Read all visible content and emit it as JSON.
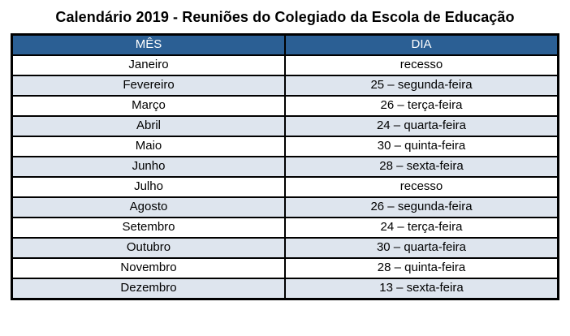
{
  "title": "Calendário 2019 - Reuniões do Colegiado da Escola de Educação",
  "table": {
    "headers": [
      "MÊS",
      "DIA"
    ],
    "rows": [
      [
        "Janeiro",
        "recesso"
      ],
      [
        "Fevereiro",
        "25 – segunda-feira"
      ],
      [
        "Março",
        "26 – terça-feira"
      ],
      [
        "Abril",
        "24 – quarta-feira"
      ],
      [
        "Maio",
        "30 – quinta-feira"
      ],
      [
        "Junho",
        "28 – sexta-feira"
      ],
      [
        "Julho",
        "recesso"
      ],
      [
        "Agosto",
        "26 – segunda-feira"
      ],
      [
        "Setembro",
        "24 – terça-feira"
      ],
      [
        "Outubro",
        "30 – quarta-feira"
      ],
      [
        "Novembro",
        "28 – quinta-feira"
      ],
      [
        "Dezembro",
        "13 – sexta-feira"
      ]
    ],
    "colors": {
      "header_bg": "#2B5F94",
      "header_text": "#FFFFFF",
      "stripe_bg": "#DEE5EE",
      "row_bg": "#FFFFFF",
      "border": "#000000"
    }
  }
}
